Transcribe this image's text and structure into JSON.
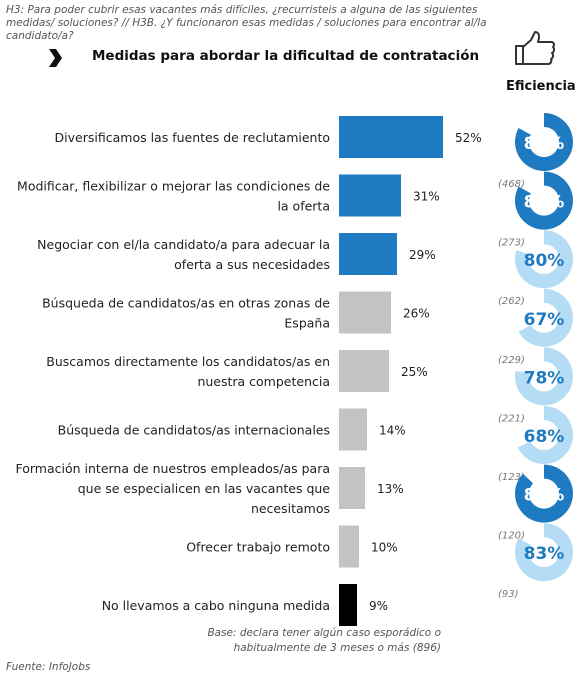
{
  "question": "H3: Para poder cubrir esas vacantes más difíciles, ¿recurristeis a alguna de las siguientes medidas/ soluciones? // H3B. ¿Y funcionaron esas medidas / soluciones para encontrar al/la candidato/a?",
  "title": "Medidas para abordar la dificultad de contratación",
  "efficiency_title": "Eficiencia",
  "base_note": "Base: declara tener algún caso esporádico o habitualmente de 3 meses o más (896)",
  "source": "Fuente: InfoJobs",
  "colors": {
    "blue": "#1f7bc1",
    "gray": "#c3c3c3",
    "black": "#000000",
    "light_blue": "#b5dcf5"
  },
  "chart_data": {
    "type": "bar",
    "orientation": "horizontal",
    "value_suffix": "%",
    "categories": [
      "Diversificamos las fuentes de reclutamiento",
      "Modificar, flexibilizar o mejorar las condiciones de la oferta",
      "Negociar con el/la candidato/a para adecuar la oferta a sus necesidades",
      "Búsqueda de candidatos/as en otras zonas de España",
      "Buscamos directamente los candidatos/as en nuestra competencia",
      "Búsqueda de candidatos/as internacionales",
      "Formación interna de nuestros empleados/as para que se especialicen en las vacantes que necesitamos",
      "Ofrecer trabajo remoto",
      "No llevamos a cabo ninguna medida"
    ],
    "category_lines": [
      [
        "Diversificamos las fuentes de reclutamiento"
      ],
      [
        "Modificar, flexibilizar o mejorar las condiciones de",
        "la oferta"
      ],
      [
        "Negociar con el/la candidato/a para adecuar la",
        "oferta a sus necesidades"
      ],
      [
        "Búsqueda de candidatos/as en otras zonas de",
        "España"
      ],
      [
        "Buscamos directamente los candidatos/as en",
        "nuestra competencia"
      ],
      [
        "Búsqueda de candidatos/as internacionales"
      ],
      [
        "Formación interna de nuestros empleados/as para",
        "que se especialicen en las vacantes que",
        "necesitamos"
      ],
      [
        "Ofrecer trabajo remoto"
      ],
      [
        "No llevamos a cabo ninguna medida"
      ]
    ],
    "values": [
      52,
      31,
      29,
      26,
      25,
      14,
      13,
      10,
      9
    ],
    "bar_colors": [
      "blue",
      "blue",
      "blue",
      "gray",
      "gray",
      "gray",
      "gray",
      "gray",
      "black"
    ],
    "efficiency": {
      "suffix": "%",
      "values": [
        83,
        83,
        80,
        67,
        78,
        68,
        87,
        83
      ],
      "bases": [
        "(468)",
        "(273)",
        "(262)",
        "(229)",
        "(221)",
        "(123)",
        "(120)",
        "(93)"
      ],
      "fill_colors": [
        "blue",
        "blue",
        "light_blue",
        "light_blue",
        "light_blue",
        "light_blue",
        "blue",
        "light_blue"
      ]
    }
  }
}
